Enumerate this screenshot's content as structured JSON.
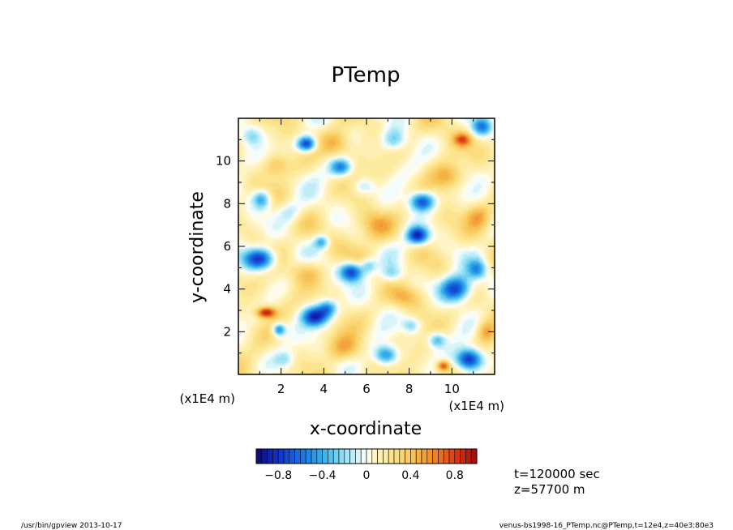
{
  "chart_data": {
    "type": "heatmap",
    "title": "PTemp",
    "xlabel": "x-coordinate",
    "ylabel": "y-coordinate",
    "x_unit": "(x1E4 m)",
    "y_unit": "(x1E4 m)",
    "xlim": [
      0,
      12
    ],
    "ylim": [
      0,
      12
    ],
    "x_ticks": [
      {
        "value": 2,
        "label": "2"
      },
      {
        "value": 4,
        "label": "4"
      },
      {
        "value": 6,
        "label": "6"
      },
      {
        "value": 8,
        "label": "8"
      },
      {
        "value": 10,
        "label": "10"
      }
    ],
    "y_ticks": [
      {
        "value": 2,
        "label": "2"
      },
      {
        "value": 4,
        "label": "4"
      },
      {
        "value": 6,
        "label": "6"
      },
      {
        "value": 8,
        "label": "8"
      },
      {
        "value": 10,
        "label": "10"
      }
    ],
    "colorbar": {
      "min": -1.0,
      "max": 1.0,
      "step": 0.05,
      "ticks": [
        {
          "value": -0.8,
          "label": "−0.8"
        },
        {
          "value": -0.4,
          "label": "−0.4"
        },
        {
          "value": 0,
          "label": "0"
        },
        {
          "value": 0.4,
          "label": "0.4"
        },
        {
          "value": 0.8,
          "label": "0.8"
        }
      ]
    },
    "anomalies": [
      {
        "x": 3.2,
        "y": 10.8,
        "sx": 0.45,
        "sy": 0.35,
        "amp": -0.95
      },
      {
        "x": 4.8,
        "y": 9.7,
        "sx": 0.5,
        "sy": 0.4,
        "amp": -0.7
      },
      {
        "x": 8.6,
        "y": 8.1,
        "sx": 0.6,
        "sy": 0.45,
        "amp": -0.9
      },
      {
        "x": 8.4,
        "y": 6.5,
        "sx": 0.5,
        "sy": 0.4,
        "amp": -0.95
      },
      {
        "x": 1.1,
        "y": 8.2,
        "sx": 0.45,
        "sy": 0.45,
        "amp": -0.6
      },
      {
        "x": 1.0,
        "y": 5.4,
        "sx": 0.75,
        "sy": 0.5,
        "amp": -0.95
      },
      {
        "x": 5.3,
        "y": 4.8,
        "sx": 0.55,
        "sy": 0.45,
        "amp": -0.95
      },
      {
        "x": 6.1,
        "y": 5.1,
        "sx": 0.35,
        "sy": 0.35,
        "amp": -0.4
      },
      {
        "x": 10.2,
        "y": 4.0,
        "sx": 0.75,
        "sy": 0.6,
        "amp": -0.9
      },
      {
        "x": 11.2,
        "y": 4.9,
        "sx": 0.45,
        "sy": 0.45,
        "amp": -0.5
      },
      {
        "x": 3.6,
        "y": 2.7,
        "sx": 0.6,
        "sy": 0.45,
        "amp": -0.95
      },
      {
        "x": 4.2,
        "y": 3.1,
        "sx": 0.45,
        "sy": 0.4,
        "amp": -0.6
      },
      {
        "x": 1.9,
        "y": 2.1,
        "sx": 0.3,
        "sy": 0.3,
        "amp": -0.7
      },
      {
        "x": 6.9,
        "y": 0.9,
        "sx": 0.55,
        "sy": 0.45,
        "amp": -0.7
      },
      {
        "x": 10.8,
        "y": 0.7,
        "sx": 0.6,
        "sy": 0.5,
        "amp": -1.0
      },
      {
        "x": 9.3,
        "y": 1.6,
        "sx": 0.4,
        "sy": 0.35,
        "amp": -0.5
      },
      {
        "x": 7.3,
        "y": 11.0,
        "sx": 0.55,
        "sy": 0.5,
        "amp": -0.4
      },
      {
        "x": 11.4,
        "y": 11.6,
        "sx": 0.45,
        "sy": 0.4,
        "amp": -0.55
      },
      {
        "x": 0.6,
        "y": 11.2,
        "sx": 0.5,
        "sy": 0.45,
        "amp": -0.35
      },
      {
        "x": 2.4,
        "y": 7.6,
        "sx": 0.6,
        "sy": 0.5,
        "amp": -0.3
      },
      {
        "x": 7.2,
        "y": 4.7,
        "sx": 0.5,
        "sy": 0.4,
        "amp": -0.35
      },
      {
        "x": 5.9,
        "y": 8.8,
        "sx": 0.5,
        "sy": 0.4,
        "amp": -0.3
      },
      {
        "x": 3.9,
        "y": 6.2,
        "sx": 0.35,
        "sy": 0.3,
        "amp": -0.5
      },
      {
        "x": 8.1,
        "y": 2.3,
        "sx": 0.4,
        "sy": 0.35,
        "amp": -0.35
      },
      {
        "x": 2.2,
        "y": 0.7,
        "sx": 0.5,
        "sy": 0.4,
        "amp": -0.3
      },
      {
        "x": 4.6,
        "y": 10.8,
        "sx": 0.7,
        "sy": 0.6,
        "amp": 0.35
      },
      {
        "x": 6.4,
        "y": 7.0,
        "sx": 0.8,
        "sy": 0.7,
        "amp": 0.35
      },
      {
        "x": 3.2,
        "y": 4.8,
        "sx": 0.8,
        "sy": 0.6,
        "amp": 0.3
      },
      {
        "x": 9.8,
        "y": 9.3,
        "sx": 0.7,
        "sy": 0.6,
        "amp": 0.35
      },
      {
        "x": 10.5,
        "y": 11.0,
        "sx": 0.4,
        "sy": 0.3,
        "amp": 0.55
      },
      {
        "x": 1.3,
        "y": 2.9,
        "sx": 0.45,
        "sy": 0.25,
        "amp": 0.8
      },
      {
        "x": 9.6,
        "y": 0.4,
        "sx": 0.3,
        "sy": 0.25,
        "amp": 0.7
      },
      {
        "x": 5.0,
        "y": 1.2,
        "sx": 0.8,
        "sy": 0.6,
        "amp": 0.3
      },
      {
        "x": 11.2,
        "y": 7.4,
        "sx": 0.6,
        "sy": 0.6,
        "amp": 0.35
      },
      {
        "x": 7.8,
        "y": 3.6,
        "sx": 0.7,
        "sy": 0.5,
        "amp": 0.3
      },
      {
        "x": 1.8,
        "y": 9.8,
        "sx": 0.6,
        "sy": 0.5,
        "amp": 0.3
      },
      {
        "x": 11.6,
        "y": 2.0,
        "sx": 0.4,
        "sy": 0.5,
        "amp": 0.35
      }
    ]
  },
  "annotations": {
    "time": "t=120000 sec",
    "height": "z=57700 m"
  },
  "footer": {
    "program": "/usr/bin/gpview   2013-10-17",
    "source": "venus-bs1998-16_PTemp.nc@PTemp,t=12e4,z=40e3:80e3"
  }
}
